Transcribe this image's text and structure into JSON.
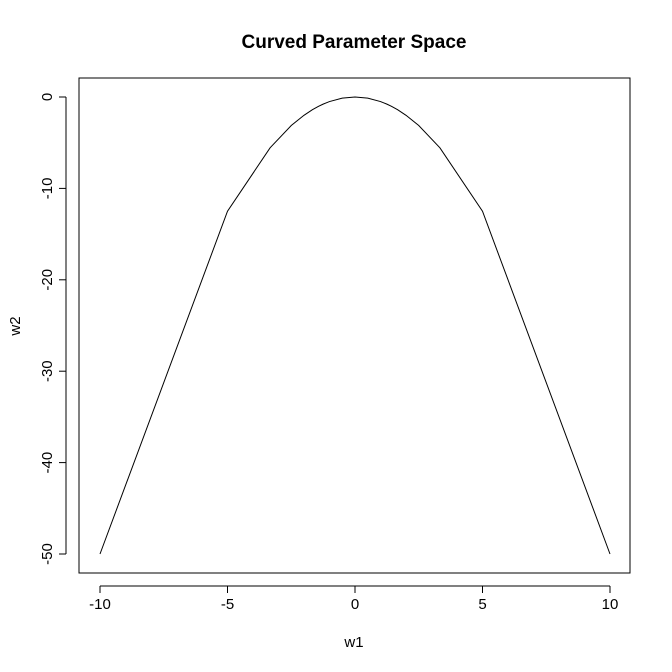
{
  "chart_data": {
    "type": "line",
    "title": "Curved Parameter Space",
    "xlabel": "w1",
    "ylabel": "w2",
    "xlim": [
      -10,
      10
    ],
    "ylim": [
      -50,
      0
    ],
    "x_ticks": [
      -10,
      -5,
      0,
      5,
      10
    ],
    "x_tick_labels": [
      "-10",
      "-5",
      "0",
      "5",
      "10"
    ],
    "y_ticks": [
      0,
      -10,
      -20,
      -30,
      -40,
      -50
    ],
    "y_tick_labels": [
      "0",
      "-10",
      "-20",
      "-30",
      "-40",
      "-50"
    ],
    "grid": false,
    "series": [
      {
        "color": "#000000",
        "x": [
          -10,
          -5,
          -3.33,
          -2.5,
          -2,
          -1.67,
          -1.43,
          -1.25,
          -1.11,
          -1,
          -0.5,
          0,
          0.5,
          1,
          1.11,
          1.25,
          1.43,
          1.67,
          2,
          2.5,
          3.33,
          5,
          10
        ],
        "y": [
          -50,
          -12.5,
          -5.56,
          -3.12,
          -2,
          -1.39,
          -1.02,
          -0.78,
          -0.62,
          -0.5,
          -0.12,
          0,
          -0.12,
          -0.5,
          -0.62,
          -0.78,
          -1.02,
          -1.39,
          -2,
          -3.12,
          -5.56,
          -12.5,
          -50
        ]
      }
    ]
  }
}
